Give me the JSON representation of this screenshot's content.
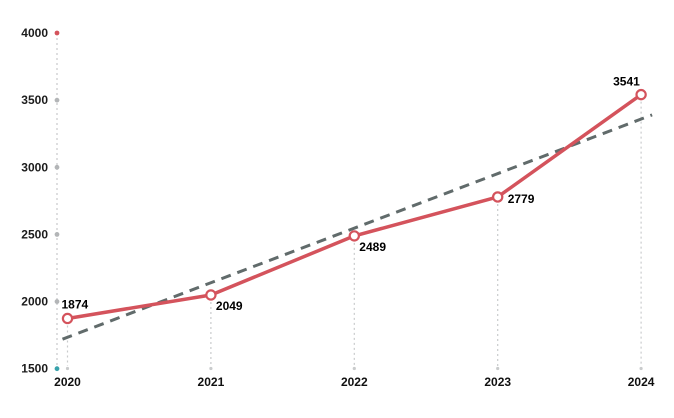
{
  "page": {
    "background": "#ffffff"
  },
  "chart_data": {
    "type": "line",
    "title": "",
    "categories": [
      "2020",
      "2021",
      "2022",
      "2023",
      "2024"
    ],
    "series": [
      {
        "name": "value",
        "values": [
          1874,
          2049,
          2489,
          2779,
          3541
        ],
        "color": "#d4535c",
        "line_width": 3.5,
        "marker": "open-circle",
        "marker_fill": "#ffffff",
        "data_labels": [
          "1874",
          "2049",
          "2489",
          "2779",
          "3541"
        ],
        "label_positions": [
          "above",
          "below-right",
          "below-right",
          "right",
          "above-left"
        ]
      }
    ],
    "trendline": {
      "type": "linear",
      "style": "dashed",
      "color": "#616b6b",
      "start_value": 1734,
      "end_value": 3359
    },
    "y_axis": {
      "tick_labels": [
        "1500",
        "2000",
        "2500",
        "3000",
        "3500",
        "4000"
      ],
      "tick_values": [
        1500,
        2000,
        2500,
        3000,
        3500,
        4000
      ],
      "range": [
        1500,
        4000
      ],
      "axis_line_style": "dashed",
      "axis_line_color": "#c7c9ca",
      "tick_dot_color": "#b3b5b7",
      "top_tick_dot_color": "#d4535c",
      "bottom_tick_dot_color": "#38a2ab"
    },
    "grid": {
      "droplines": "vertical-dashed",
      "color": "#c9cbcc"
    },
    "legend": "none"
  }
}
